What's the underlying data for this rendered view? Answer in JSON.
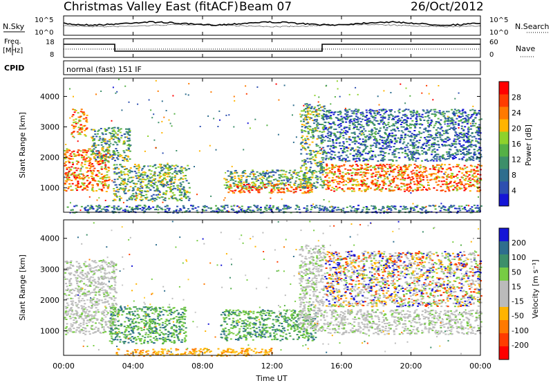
{
  "header": {
    "title": "Christmas Valley East (fitACF)",
    "beam": "Beam 07",
    "date": "26/Oct/2012"
  },
  "nsky_panel": {
    "left_label": "N.Sky",
    "right_label": "N.Search",
    "left_ticks": [
      "10^5",
      "10^0"
    ],
    "right_ticks": [
      "10^5",
      "10^0"
    ]
  },
  "freq_panel": {
    "left_label_1": "Freq.",
    "left_label_2": "[MHz]",
    "right_label": "Nave",
    "left_ticks": [
      "18",
      "8"
    ],
    "right_ticks": [
      "60",
      "0"
    ]
  },
  "cpid": {
    "label": "CPID",
    "value": "normal (fast) 151 IF"
  },
  "time_axis": {
    "ticks": [
      "00:00",
      "04:00",
      "08:00",
      "12:00",
      "16:00",
      "20:00",
      "00:00"
    ],
    "label": "Time UT"
  },
  "chart_data": [
    {
      "type": "heatmap",
      "name": "power",
      "ylabel": "Slant Range [km]",
      "xlabel": "Time UT",
      "yticks": [
        "1000",
        "2000",
        "3000",
        "4000"
      ],
      "ylim": [
        200,
        4600
      ],
      "xlim_hours": [
        0,
        24
      ],
      "colorbar": {
        "label": "Power [dB]",
        "ticks": [
          "4",
          "8",
          "12",
          "16",
          "20",
          "24",
          "28"
        ],
        "colors": [
          "#1515d6",
          "#2d4fb0",
          "#2e6e8e",
          "#3d8f6a",
          "#55b046",
          "#8ed22c",
          "#ffb400",
          "#ff7a00",
          "#ff3c00",
          "#ff0000"
        ]
      },
      "echo_regions": [
        {
          "t": [
            0.0,
            2.6
          ],
          "range": [
            900,
            2300
          ],
          "level": "high"
        },
        {
          "t": [
            0.4,
            1.3
          ],
          "range": [
            2700,
            3600
          ],
          "level": "high"
        },
        {
          "t": [
            1.5,
            3.8
          ],
          "range": [
            1900,
            3000
          ],
          "level": "mid"
        },
        {
          "t": [
            2.8,
            7.2
          ],
          "range": [
            600,
            1800
          ],
          "level": "mid"
        },
        {
          "t": [
            9.2,
            14.3
          ],
          "range": [
            1000,
            1600
          ],
          "level": "mid"
        },
        {
          "t": [
            9.4,
            14.3
          ],
          "range": [
            850,
            1150
          ],
          "level": "high"
        },
        {
          "t": [
            13.6,
            15.0
          ],
          "range": [
            1000,
            3800
          ],
          "level": "mid"
        },
        {
          "t": [
            15.0,
            24.0
          ],
          "range": [
            900,
            1800
          ],
          "level": "high"
        },
        {
          "t": [
            15.0,
            24.0
          ],
          "range": [
            1900,
            3600
          ],
          "level": "low"
        },
        {
          "t": [
            0.0,
            24.0
          ],
          "range": [
            200,
            450
          ],
          "level": "low"
        }
      ]
    },
    {
      "type": "heatmap",
      "name": "velocity",
      "ylabel": "Slant Range [km]",
      "xlabel": "Time UT",
      "yticks": [
        "1000",
        "2000",
        "3000",
        "4000"
      ],
      "ylim": [
        200,
        4600
      ],
      "xlim_hours": [
        0,
        24
      ],
      "colorbar": {
        "label": "Velocity [m s⁻¹]",
        "ticks": [
          "200",
          "100",
          "50",
          "15",
          "-15",
          "-50",
          "-100",
          "-200"
        ],
        "colors": [
          "#1515d6",
          "#2e6e8e",
          "#3d8f6a",
          "#77cc44",
          "#bbbbbb",
          "#bbbbbb",
          "#ffb400",
          "#ff7a00",
          "#ff3c00",
          "#ff0000"
        ]
      },
      "echo_regions": [
        {
          "t": [
            0.0,
            3.0
          ],
          "range": [
            900,
            3300
          ],
          "vel": "near-zero"
        },
        {
          "t": [
            2.6,
            7.0
          ],
          "range": [
            600,
            1800
          ],
          "vel": "positive"
        },
        {
          "t": [
            9.0,
            14.5
          ],
          "range": [
            700,
            1700
          ],
          "vel": "positive"
        },
        {
          "t": [
            13.5,
            15.0
          ],
          "range": [
            1000,
            3800
          ],
          "vel": "near-zero"
        },
        {
          "t": [
            15.0,
            24.0
          ],
          "range": [
            900,
            1700
          ],
          "vel": "near-zero"
        },
        {
          "t": [
            15.0,
            24.0
          ],
          "range": [
            1800,
            3600
          ],
          "vel": "mixed"
        },
        {
          "t": [
            3.0,
            12.0
          ],
          "range": [
            200,
            450
          ],
          "vel": "negative"
        }
      ]
    }
  ]
}
